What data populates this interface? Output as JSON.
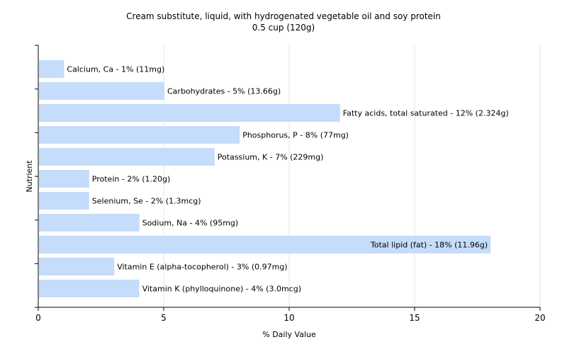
{
  "chart_data": {
    "type": "bar",
    "orientation": "horizontal",
    "title": "Cream substitute, liquid, with hydrogenated vegetable oil and soy protein",
    "subtitle": "0.5 cup (120g)",
    "xlabel": "% Daily Value",
    "ylabel": "Nutrient",
    "xlim": [
      0,
      20
    ],
    "xticks": [
      0,
      5,
      10,
      15,
      20
    ],
    "grid": "vertical",
    "bar_color": "#c5dcfb",
    "categories": [
      "Calcium, Ca",
      "Carbohydrates",
      "Fatty acids, total saturated",
      "Phosphorus, P",
      "Potassium, K",
      "Protein",
      "Selenium, Se",
      "Sodium, Na",
      "Total lipid (fat)",
      "Vitamin E (alpha-tocopherol)",
      "Vitamin K (phylloquinone)"
    ],
    "values": [
      1,
      5,
      12,
      8,
      7,
      2,
      2,
      4,
      18,
      3,
      4
    ],
    "labels": [
      "Calcium, Ca - 1% (11mg)",
      "Carbohydrates - 5% (13.66g)",
      "Fatty acids, total saturated - 12% (2.324g)",
      "Phosphorus, P - 8% (77mg)",
      "Potassium, K - 7% (229mg)",
      "Protein - 2% (1.20g)",
      "Selenium, Se - 2% (1.3mcg)",
      "Sodium, Na - 4% (95mg)",
      "Total lipid (fat) - 18% (11.96g)",
      "Vitamin E (alpha-tocopherol) - 3% (0.97mg)",
      "Vitamin K (phylloquinone) - 4% (3.0mcg)"
    ]
  }
}
